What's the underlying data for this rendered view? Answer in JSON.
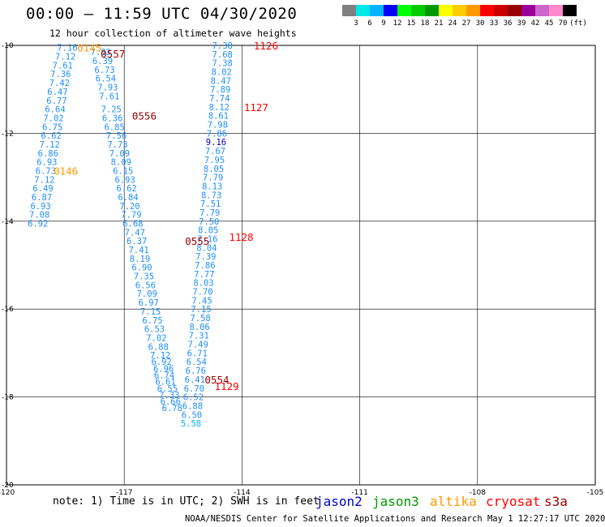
{
  "header": {
    "title": "00:00 – 11:59 UTC 04/30/2020",
    "subtitle": "12 hour collection of altimeter wave heights"
  },
  "colorbar": {
    "unit": "(ft)",
    "colors": [
      "#808080",
      "#00e8e8",
      "#00b4ff",
      "#0000ff",
      "#00ff00",
      "#00cc00",
      "#009900",
      "#ffff00",
      "#ffcc00",
      "#ff9900",
      "#ff0000",
      "#cc0000",
      "#990000",
      "#990099",
      "#cc66cc",
      "#ff88cc",
      "#000000"
    ],
    "labels": [
      "3",
      "6",
      "9",
      "12",
      "15",
      "18",
      "21",
      "24",
      "27",
      "30",
      "33",
      "36",
      "39",
      "42",
      "45",
      "70"
    ]
  },
  "axes": {
    "x_ticks": [
      "-120",
      "-117",
      "-114",
      "-111",
      "-108",
      "-105"
    ],
    "y_ticks": [
      "-10",
      "-12",
      "-14",
      "-16",
      "-18",
      "-20"
    ]
  },
  "tracks": [
    {
      "id": "A",
      "color": "#1e90ff",
      "points": [
        [
          "7.16",
          -118.45,
          -10.05
        ],
        [
          "7.12",
          -118.5,
          -10.25
        ],
        [
          "7.61",
          -118.57,
          -10.45
        ],
        [
          "7.36",
          -118.62,
          -10.65
        ],
        [
          "7.42",
          -118.65,
          -10.85
        ],
        [
          "6.47",
          -118.7,
          -11.05
        ],
        [
          "6.77",
          -118.72,
          -11.25
        ],
        [
          "6.64",
          -118.76,
          -11.45
        ],
        [
          "7.02",
          -118.8,
          -11.65
        ],
        [
          "6.75",
          -118.83,
          -11.85
        ],
        [
          "6.62",
          -118.86,
          -12.05
        ],
        [
          "7.12",
          -118.9,
          -12.25
        ],
        [
          "6.86",
          -118.94,
          -12.45
        ],
        [
          "6.93",
          -118.97,
          -12.65
        ],
        [
          "6.73",
          -119.0,
          -12.85
        ],
        [
          "7.12",
          -119.03,
          -13.05
        ],
        [
          "6.49",
          -119.07,
          -13.25
        ],
        [
          "6.87",
          -119.1,
          -13.45
        ],
        [
          "6.93",
          -119.13,
          -13.65
        ],
        [
          "7.08",
          -119.16,
          -13.85
        ],
        [
          "6.92",
          -119.2,
          -14.05
        ]
      ]
    },
    {
      "id": "B",
      "color": "#1e90ff",
      "points": [
        [
          "7.83",
          -117.6,
          -10.15
        ],
        [
          "6.39",
          -117.55,
          -10.35
        ],
        [
          "6.73",
          -117.5,
          -10.55
        ],
        [
          "6.54",
          -117.47,
          -10.75
        ],
        [
          "7.93",
          -117.42,
          -10.95
        ],
        [
          "7.61",
          -117.38,
          -11.15
        ],
        [
          "7.25",
          -117.33,
          -11.45
        ],
        [
          "6.36",
          -117.3,
          -11.65
        ],
        [
          "6.85",
          -117.25,
          -11.85
        ],
        [
          "7.56",
          -117.2,
          -12.05
        ],
        [
          "7.73",
          -117.17,
          -12.25
        ],
        [
          "7.09",
          -117.12,
          -12.45
        ],
        [
          "8.09",
          -117.08,
          -12.65
        ],
        [
          "6.15",
          -117.03,
          -12.85
        ],
        [
          "6.93",
          -116.98,
          -13.05
        ],
        [
          "6.62",
          -116.94,
          -13.25
        ],
        [
          "6.84",
          -116.9,
          -13.45
        ],
        [
          "7.20",
          -116.86,
          -13.65
        ],
        [
          "7.79",
          -116.82,
          -13.85
        ],
        [
          "6.68",
          -116.78,
          -14.05
        ],
        [
          "7.47",
          -116.73,
          -14.25
        ],
        [
          "6.37",
          -116.68,
          -14.45
        ],
        [
          "7.41",
          -116.63,
          -14.65
        ],
        [
          "8.19",
          -116.6,
          -14.85
        ],
        [
          "6.90",
          -116.55,
          -15.05
        ],
        [
          "7.35",
          -116.5,
          -15.25
        ],
        [
          "6.56",
          -116.46,
          -15.45
        ],
        [
          "7.09",
          -116.42,
          -15.65
        ],
        [
          "6.97",
          -116.38,
          -15.85
        ],
        [
          "7.15",
          -116.33,
          -16.05
        ],
        [
          "6.75",
          -116.28,
          -16.25
        ],
        [
          "6.53",
          -116.23,
          -16.45
        ],
        [
          "7.02",
          -116.18,
          -16.65
        ],
        [
          "6.88",
          -116.13,
          -16.85
        ],
        [
          "7.12",
          -116.08,
          -17.05
        ],
        [
          "6.92",
          -116.05,
          -17.2
        ],
        [
          "6.96",
          -116.0,
          -17.35
        ],
        [
          "6.74",
          -115.98,
          -17.5
        ],
        [
          "6.61",
          -115.95,
          -17.65
        ],
        [
          "6.55",
          -115.9,
          -17.8
        ],
        [
          "7.33",
          -115.85,
          -17.95
        ],
        [
          "6.66",
          -115.82,
          -18.1
        ],
        [
          "6.78",
          -115.78,
          -18.25
        ]
      ]
    },
    {
      "id": "C",
      "color": "#1e90ff",
      "points": [
        [
          "7.38",
          -114.5,
          -10.0
        ],
        [
          "7.68",
          -114.5,
          -10.2
        ],
        [
          "7.38",
          -114.5,
          -10.4
        ],
        [
          "8.02",
          -114.52,
          -10.6
        ],
        [
          "8.47",
          -114.54,
          -10.8
        ],
        [
          "7.89",
          -114.55,
          -11.0
        ],
        [
          "7.74",
          -114.57,
          -11.2
        ],
        [
          "8.12",
          -114.58,
          -11.4
        ],
        [
          "8.61",
          -114.6,
          -11.6
        ],
        [
          "7.98",
          -114.62,
          -11.8
        ],
        [
          "7.86",
          -114.64,
          -12.0
        ],
        [
          "9.16",
          -114.66,
          -12.2
        ],
        [
          "7.67",
          -114.68,
          -12.4
        ],
        [
          "7.95",
          -114.7,
          -12.6
        ],
        [
          "8.05",
          -114.72,
          -12.8
        ],
        [
          "7.79",
          -114.74,
          -13.0
        ],
        [
          "8.13",
          -114.76,
          -13.2
        ],
        [
          "8.73",
          -114.78,
          -13.4
        ],
        [
          "7.51",
          -114.8,
          -13.6
        ],
        [
          "7.79",
          -114.82,
          -13.8
        ],
        [
          "7.50",
          -114.84,
          -14.0
        ],
        [
          "8.05",
          -114.86,
          -14.2
        ],
        [
          "7.16",
          -114.88,
          -14.4
        ],
        [
          "8.04",
          -114.9,
          -14.6
        ],
        [
          "7.39",
          -114.92,
          -14.8
        ],
        [
          "7.86",
          -114.94,
          -15.0
        ],
        [
          "7.77",
          -114.96,
          -15.2
        ],
        [
          "8.03",
          -114.98,
          -15.4
        ],
        [
          "7.70",
          -115.0,
          -15.6
        ],
        [
          "7.45",
          -115.02,
          -15.8
        ],
        [
          "7.15",
          -115.04,
          -16.0
        ],
        [
          "7.58",
          -115.06,
          -16.2
        ],
        [
          "8.06",
          -115.08,
          -16.4
        ],
        [
          "7.31",
          -115.1,
          -16.6
        ],
        [
          "7.49",
          -115.12,
          -16.8
        ],
        [
          "6.71",
          -115.14,
          -17.0
        ],
        [
          "6.54",
          -115.16,
          -17.2
        ],
        [
          "6.76",
          -115.18,
          -17.4
        ],
        [
          "6.41",
          -115.2,
          -17.6
        ],
        [
          "6.70",
          -115.22,
          -17.8
        ],
        [
          "6.52",
          -115.24,
          -18.0
        ],
        [
          "6.88",
          -115.26,
          -18.2
        ],
        [
          "6.50",
          -115.28,
          -18.4
        ],
        [
          "5.58",
          -115.3,
          -18.6
        ]
      ]
    }
  ],
  "times": [
    {
      "label": "0145",
      "color": "#ff9900",
      "lon": -118.2,
      "lat": -10.05
    },
    {
      "label": "0557",
      "color": "#990000",
      "lon": -117.6,
      "lat": -10.18
    },
    {
      "label": "0556",
      "color": "#990000",
      "lon": -116.8,
      "lat": -11.6
    },
    {
      "label": "0146",
      "color": "#ff9900",
      "lon": -118.8,
      "lat": -12.85
    },
    {
      "label": "0555",
      "color": "#990000",
      "lon": -115.45,
      "lat": -14.45
    },
    {
      "label": "0554",
      "color": "#990000",
      "lon": -114.95,
      "lat": -17.6
    },
    {
      "label": "1126",
      "color": "#ff0000",
      "lon": -113.7,
      "lat": -10.0
    },
    {
      "label": "1127",
      "color": "#ff0000",
      "lon": -113.95,
      "lat": -11.4
    },
    {
      "label": "1128",
      "color": "#ff0000",
      "lon": -114.33,
      "lat": -14.35
    },
    {
      "label": "1129",
      "color": "#ff0000",
      "lon": -114.7,
      "lat": -17.75
    }
  ],
  "footer": {
    "note": "note: 1) Time is in UTC; 2) SWH is in feet",
    "satellites": [
      {
        "name": "jason2",
        "color": "#0000cc"
      },
      {
        "name": "jason3",
        "color": "#009900"
      },
      {
        "name": "altika",
        "color": "#ff9900"
      },
      {
        "name": "cryosat",
        "color": "#ff0000"
      },
      {
        "name": "s3a",
        "color": "#990000"
      }
    ],
    "credit": "NOAA/NESDIS Center for Satellite Applications and Research   May  1 12:27:17 UTC 2020"
  }
}
